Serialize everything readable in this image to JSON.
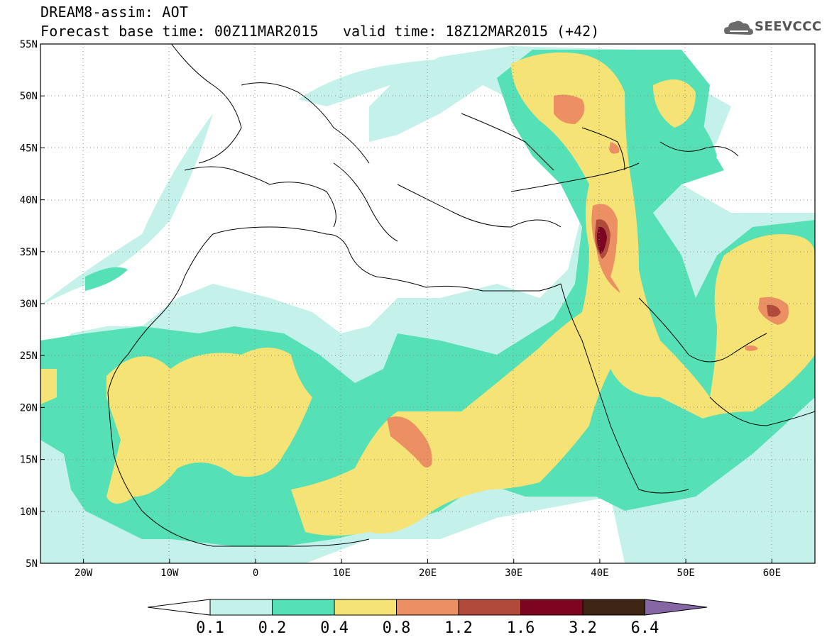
{
  "title": {
    "line1": "DREAM8-assim: AOT",
    "line2": "Forecast base time: 00Z11MAR2015",
    "valid": "valid time: 18Z12MAR2015 (+42)"
  },
  "logo": {
    "text": "SEEVCCC",
    "icon": "cloud-icon"
  },
  "map": {
    "lon_range": [
      -25,
      65
    ],
    "lat_range": [
      5,
      55
    ],
    "lat_ticks": [
      {
        "value": 55,
        "label": "55N"
      },
      {
        "value": 50,
        "label": "50N"
      },
      {
        "value": 45,
        "label": "45N"
      },
      {
        "value": 40,
        "label": "40N"
      },
      {
        "value": 35,
        "label": "35N"
      },
      {
        "value": 30,
        "label": "30N"
      },
      {
        "value": 25,
        "label": "25N"
      },
      {
        "value": 20,
        "label": "20N"
      },
      {
        "value": 15,
        "label": "15N"
      },
      {
        "value": 10,
        "label": "10N"
      },
      {
        "value": 5,
        "label": "5N"
      }
    ],
    "lon_ticks": [
      {
        "value": -20,
        "label": "20W"
      },
      {
        "value": -10,
        "label": "10W"
      },
      {
        "value": 0,
        "label": "0"
      },
      {
        "value": 10,
        "label": "10E"
      },
      {
        "value": 20,
        "label": "20E"
      },
      {
        "value": 30,
        "label": "30E"
      },
      {
        "value": 40,
        "label": "40E"
      },
      {
        "value": 50,
        "label": "50E"
      },
      {
        "value": 60,
        "label": "60E"
      }
    ],
    "grid": true
  },
  "colorbar": {
    "levels": [
      "0.1",
      "0.2",
      "0.4",
      "0.8",
      "1.2",
      "1.6",
      "3.2",
      "6.4"
    ],
    "colors": [
      "#ffffff",
      "#c4f2ea",
      "#55e0b6",
      "#f5e375",
      "#ec9064",
      "#b24a3c",
      "#7c0522",
      "#3e2415",
      "#8666a4"
    ]
  }
}
